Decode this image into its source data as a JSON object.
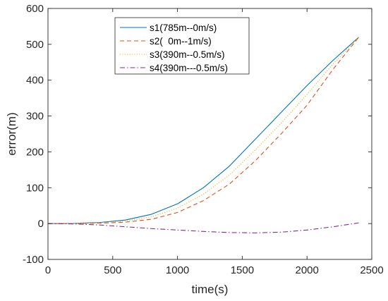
{
  "chart_data": {
    "type": "line",
    "title": "",
    "xlabel": "time(s)",
    "ylabel": "error(m)",
    "xlim": [
      0,
      2500
    ],
    "ylim": [
      -100,
      600
    ],
    "xticks": [
      0,
      500,
      1000,
      1500,
      2000,
      2500
    ],
    "yticks": [
      -100,
      0,
      100,
      200,
      300,
      400,
      500,
      600
    ],
    "grid": false,
    "legend_position": "top-center",
    "series": [
      {
        "name": "s1(785m--0m/s)",
        "color": "#0072BD",
        "style": "solid",
        "x": [
          0,
          200,
          400,
          600,
          800,
          1000,
          1200,
          1400,
          1600,
          1800,
          2000,
          2200,
          2400
        ],
        "y": [
          0,
          0.5,
          3,
          10,
          26,
          55,
          100,
          160,
          235,
          310,
          385,
          455,
          520
        ]
      },
      {
        "name": "s2(  0m--1m/s)",
        "color": "#D95319",
        "style": "dashed",
        "x": [
          0,
          200,
          400,
          600,
          800,
          1000,
          1200,
          1400,
          1600,
          1800,
          2000,
          2200,
          2400
        ],
        "y": [
          0,
          0,
          1,
          4,
          12,
          31,
          64,
          110,
          175,
          250,
          330,
          430,
          520
        ]
      },
      {
        "name": "s3(390m--0.5m/s)",
        "color": "#EDB120",
        "style": "dotted",
        "x": [
          0,
          200,
          400,
          600,
          800,
          1000,
          1200,
          1400,
          1600,
          1800,
          2000,
          2200,
          2400
        ],
        "y": [
          0,
          0,
          2,
          7,
          19,
          43,
          82,
          135,
          205,
          280,
          360,
          445,
          520
        ]
      },
      {
        "name": "s4(390m---0.5m/s)",
        "color": "#7E2F8E",
        "style": "dashdot",
        "x": [
          0,
          200,
          400,
          600,
          800,
          1000,
          1200,
          1400,
          1600,
          1800,
          2000,
          2200,
          2400
        ],
        "y": [
          0,
          -1,
          -4,
          -9,
          -14,
          -18,
          -22,
          -25,
          -26,
          -24,
          -18,
          -9,
          2
        ]
      }
    ]
  }
}
